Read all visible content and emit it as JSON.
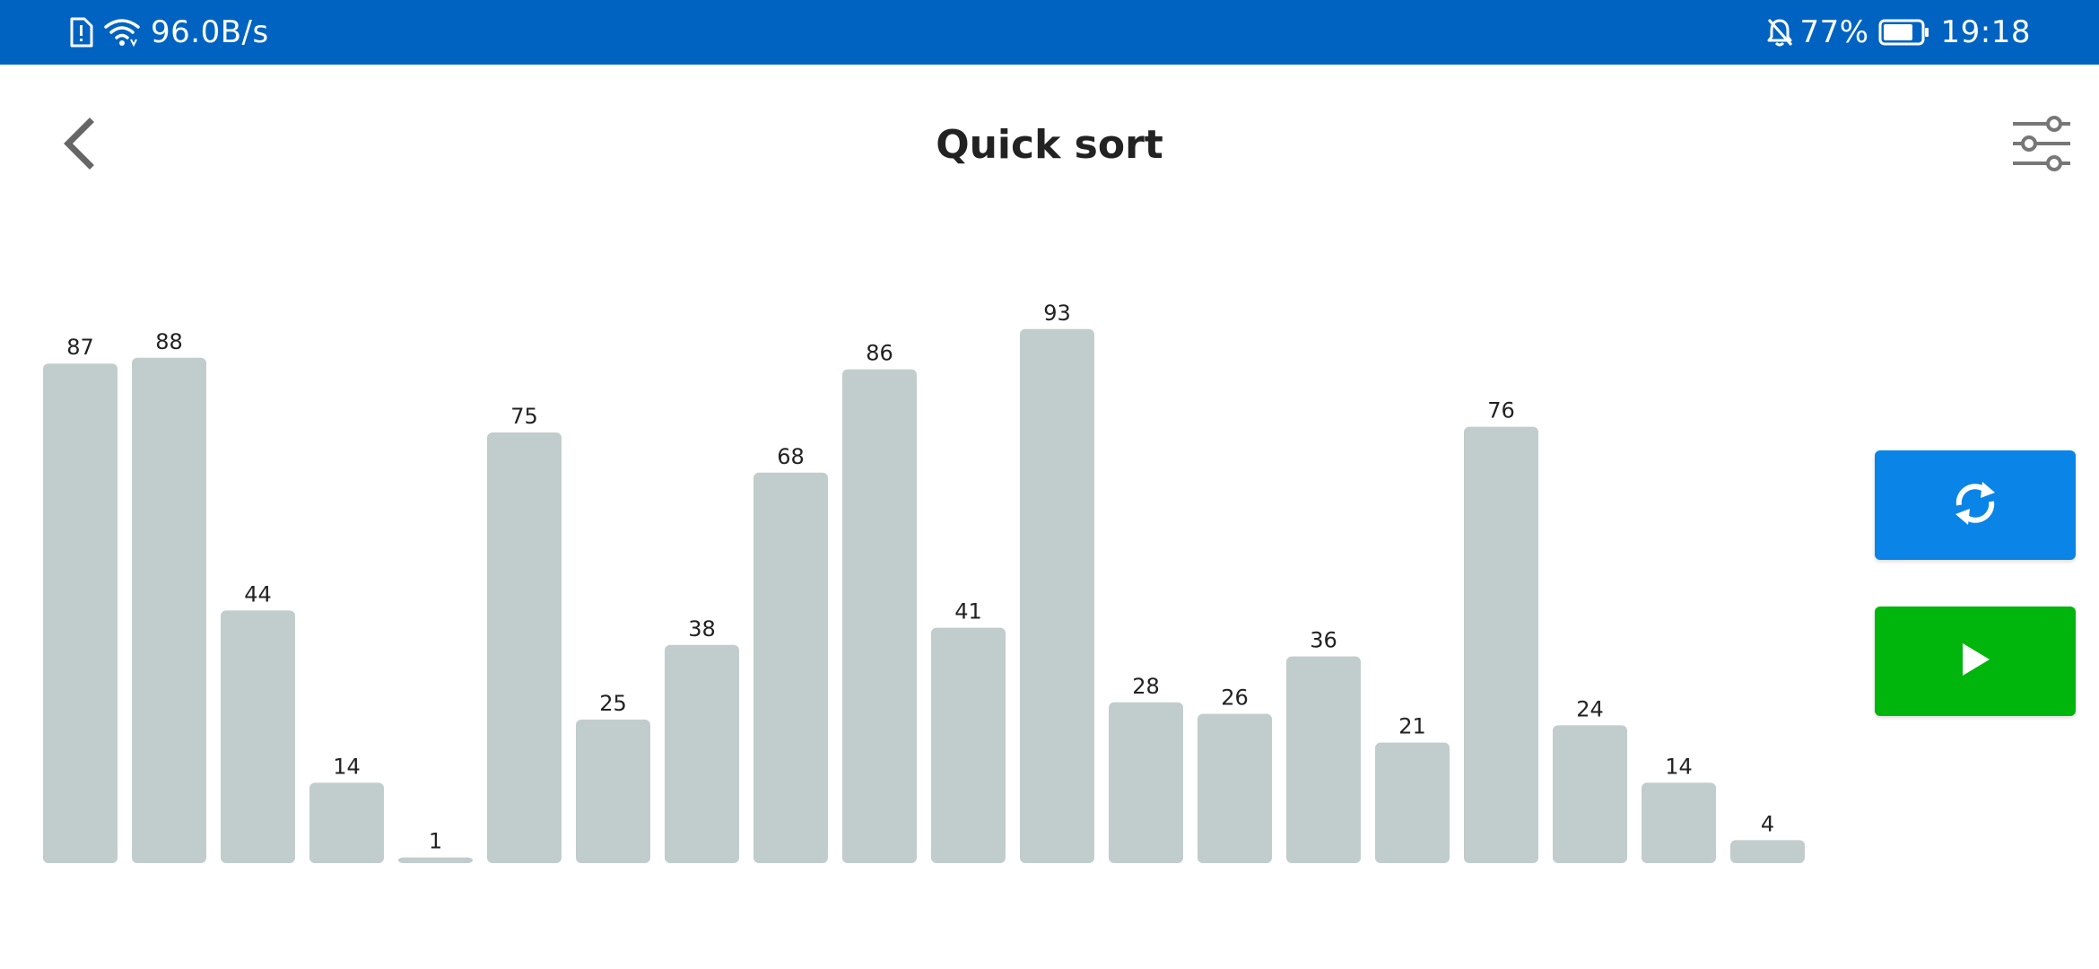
{
  "status_bar": {
    "network_speed": "96.0B/s",
    "battery_percent": "77%",
    "time": "19:18",
    "icons": [
      "sim-alert-icon",
      "wifi-icon",
      "bell-off-icon",
      "battery-icon"
    ]
  },
  "header": {
    "title": "Quick sort",
    "back_icon": "chevron-left-icon",
    "settings_icon": "sliders-icon"
  },
  "buttons": {
    "shuffle_icon": "refresh-icon",
    "play_icon": "play-icon"
  },
  "colors": {
    "status_bar": "#0063c1",
    "bar_fill": "#c1cdcc",
    "shuffle_button": "#0a84e6",
    "play_button": "#00b50b"
  },
  "chart_data": {
    "type": "bar",
    "title": "",
    "xlabel": "",
    "ylabel": "",
    "ylim": [
      0,
      100
    ],
    "values": [
      87,
      88,
      44,
      14,
      1,
      75,
      25,
      38,
      68,
      86,
      41,
      93,
      28,
      26,
      36,
      21,
      76,
      24,
      14,
      4
    ]
  }
}
